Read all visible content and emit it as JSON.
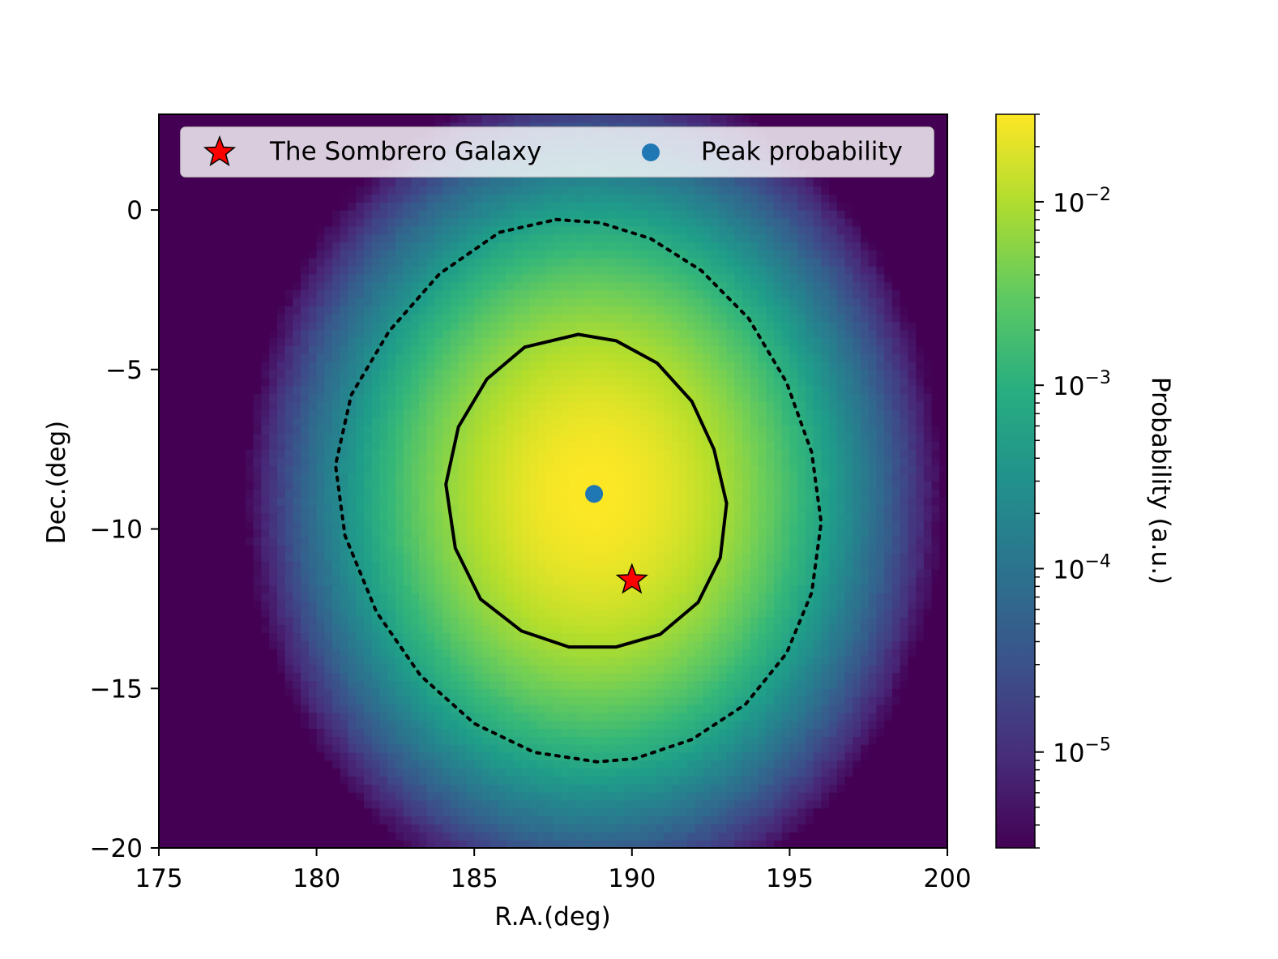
{
  "chart_data": {
    "type": "heatmap",
    "title": "",
    "xlabel": "R.A.(deg)",
    "ylabel": "Dec.(deg)",
    "xlim": [
      175,
      200
    ],
    "ylim": [
      -20,
      3
    ],
    "x_ticks": [
      175,
      180,
      185,
      190,
      195,
      200
    ],
    "y_ticks": [
      0,
      -5,
      -10,
      -15,
      -20
    ],
    "x_tick_labels": [
      "175",
      "180",
      "185",
      "190",
      "195",
      "200"
    ],
    "y_tick_labels": [
      "0",
      "−5",
      "−10",
      "−15",
      "−20"
    ],
    "colormap": "viridis",
    "colorbar": {
      "label": "Probability (a.u.)",
      "scale": "log",
      "range": [
        3e-06,
        0.03
      ],
      "major_ticks": [
        0.01,
        0.001,
        0.0001,
        1e-05
      ],
      "major_tick_labels": [
        {
          "base": "10",
          "exp": "−2"
        },
        {
          "base": "10",
          "exp": "−3"
        },
        {
          "base": "10",
          "exp": "−4"
        },
        {
          "base": "10",
          "exp": "−5"
        }
      ]
    },
    "peak_value": 0.03,
    "contours": [
      {
        "style": "solid",
        "points": [
          [
            188.3,
            -3.9
          ],
          [
            189.5,
            -4.1
          ],
          [
            190.8,
            -4.8
          ],
          [
            191.9,
            -6.0
          ],
          [
            192.6,
            -7.5
          ],
          [
            193.0,
            -9.2
          ],
          [
            192.8,
            -10.9
          ],
          [
            192.1,
            -12.3
          ],
          [
            190.9,
            -13.3
          ],
          [
            189.5,
            -13.7
          ],
          [
            188.0,
            -13.7
          ],
          [
            186.5,
            -13.2
          ],
          [
            185.2,
            -12.2
          ],
          [
            184.4,
            -10.6
          ],
          [
            184.1,
            -8.6
          ],
          [
            184.5,
            -6.8
          ],
          [
            185.4,
            -5.3
          ],
          [
            186.6,
            -4.3
          ]
        ]
      },
      {
        "style": "dotted",
        "points": [
          [
            187.6,
            -0.3
          ],
          [
            189.0,
            -0.4
          ],
          [
            190.6,
            -0.9
          ],
          [
            192.2,
            -1.9
          ],
          [
            193.7,
            -3.4
          ],
          [
            194.9,
            -5.4
          ],
          [
            195.7,
            -7.6
          ],
          [
            196.0,
            -9.8
          ],
          [
            195.7,
            -12.0
          ],
          [
            194.9,
            -13.9
          ],
          [
            193.6,
            -15.5
          ],
          [
            191.9,
            -16.6
          ],
          [
            190.1,
            -17.2
          ],
          [
            188.9,
            -17.3
          ],
          [
            186.9,
            -17.0
          ],
          [
            185.0,
            -16.1
          ],
          [
            183.3,
            -14.6
          ],
          [
            181.9,
            -12.6
          ],
          [
            180.9,
            -10.2
          ],
          [
            180.6,
            -8.0
          ],
          [
            181.1,
            -5.8
          ],
          [
            182.3,
            -3.8
          ],
          [
            183.9,
            -2.0
          ],
          [
            185.8,
            -0.7
          ]
        ]
      }
    ],
    "series": [
      {
        "name": "The Sombrero Galaxy",
        "marker": "star",
        "color": "#ff0000",
        "x": 190.0,
        "y": -11.6
      },
      {
        "name": "Peak probability",
        "marker": "circle",
        "color": "#1f77b4",
        "x": 188.8,
        "y": -8.9
      }
    ],
    "legend_position": "top"
  }
}
